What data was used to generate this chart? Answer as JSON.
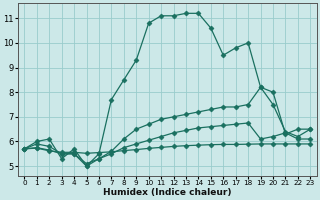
{
  "xlabel": "Humidex (Indice chaleur)",
  "bg_color": "#cce8e8",
  "grid_color": "#99cccc",
  "line_color": "#1a7060",
  "xlim": [
    -0.5,
    23.5
  ],
  "ylim": [
    4.6,
    11.6
  ],
  "yticks": [
    5,
    6,
    7,
    8,
    9,
    10,
    11
  ],
  "xticks": [
    0,
    1,
    2,
    3,
    4,
    5,
    6,
    7,
    8,
    9,
    10,
    11,
    12,
    13,
    14,
    15,
    16,
    17,
    18,
    19,
    20,
    21,
    22,
    23
  ],
  "series": [
    {
      "x": [
        0,
        1,
        2,
        3,
        4,
        5,
        6,
        7,
        8,
        9,
        10,
        11,
        12,
        13,
        14,
        15,
        16,
        17,
        18,
        19,
        20,
        21,
        22,
        23
      ],
      "y": [
        5.7,
        6.0,
        6.1,
        5.3,
        5.7,
        5.0,
        5.5,
        7.7,
        8.5,
        9.3,
        10.8,
        11.1,
        11.1,
        11.2,
        11.2,
        10.6,
        9.5,
        9.8,
        10.0,
        8.2,
        8.0,
        6.3,
        6.5,
        6.5
      ]
    },
    {
      "x": [
        0,
        1,
        2,
        3,
        4,
        5,
        6,
        7,
        8,
        9,
        10,
        11,
        12,
        13,
        14,
        15,
        16,
        17,
        18,
        19,
        20,
        21,
        22,
        23
      ],
      "y": [
        5.7,
        5.9,
        5.8,
        5.5,
        5.5,
        5.0,
        5.3,
        5.6,
        6.1,
        6.5,
        6.7,
        6.9,
        7.0,
        7.1,
        7.2,
        7.3,
        7.4,
        7.4,
        7.5,
        8.2,
        7.5,
        6.4,
        6.2,
        6.5
      ]
    },
    {
      "x": [
        0,
        1,
        2,
        3,
        4,
        5,
        6,
        7,
        8,
        9,
        10,
        11,
        12,
        13,
        14,
        15,
        16,
        17,
        18,
        19,
        20,
        21,
        22,
        23
      ],
      "y": [
        5.7,
        5.75,
        5.65,
        5.5,
        5.5,
        5.1,
        5.3,
        5.5,
        5.75,
        5.9,
        6.05,
        6.2,
        6.35,
        6.45,
        6.55,
        6.6,
        6.65,
        6.7,
        6.75,
        6.1,
        6.2,
        6.35,
        6.1,
        6.1
      ]
    },
    {
      "x": [
        0,
        1,
        2,
        3,
        4,
        5,
        6,
        7,
        8,
        9,
        10,
        11,
        12,
        13,
        14,
        15,
        16,
        17,
        18,
        19,
        20,
        21,
        22,
        23
      ],
      "y": [
        5.7,
        5.73,
        5.62,
        5.56,
        5.56,
        5.52,
        5.55,
        5.58,
        5.63,
        5.67,
        5.72,
        5.76,
        5.8,
        5.83,
        5.85,
        5.87,
        5.88,
        5.88,
        5.89,
        5.9,
        5.9,
        5.9,
        5.9,
        5.9
      ]
    }
  ]
}
